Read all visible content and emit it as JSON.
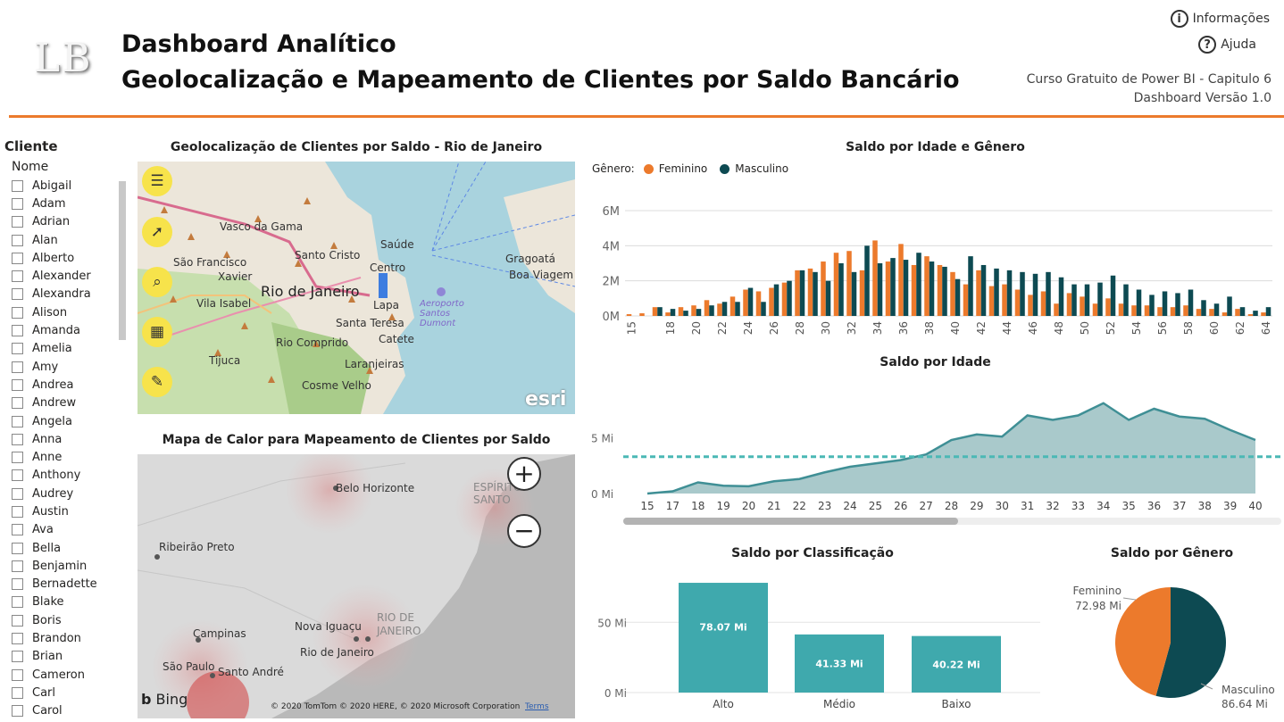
{
  "header": {
    "logo": "LB",
    "title_line1": "Dashboard Analítico",
    "title_line2": "Geolocalização e Mapeamento de Clientes por Saldo Bancário",
    "info_label": "Informações",
    "help_label": "Ajuda",
    "course_line1": "Curso Gratuito de Power BI - Capitulo 6",
    "course_line2": "Dashboard Versão 1.0",
    "accent_color": "#ec7a2c"
  },
  "slicer": {
    "title": "Cliente",
    "field": "Nome",
    "items": [
      "Abigail",
      "Adam",
      "Adrian",
      "Alan",
      "Alberto",
      "Alexander",
      "Alexandra",
      "Alison",
      "Amanda",
      "Amelia",
      "Amy",
      "Andrea",
      "Andrew",
      "Angela",
      "Anna",
      "Anne",
      "Anthony",
      "Audrey",
      "Austin",
      "Ava",
      "Bella",
      "Benjamin",
      "Bernadette",
      "Blake",
      "Boris",
      "Brandon",
      "Brian",
      "Cameron",
      "Carl",
      "Carol"
    ]
  },
  "map1": {
    "title": "Geolocalização de Clientes por Saldo - Rio de Janeiro",
    "tools": [
      "menu-icon",
      "cursor-icon",
      "search-icon",
      "qr-icon",
      "wrench-icon"
    ],
    "labels": [
      "Vasco da Gama",
      "Saúde",
      "Gragoatá",
      "Boa Viagem",
      "São Francisco",
      "Xavier",
      "Santo Cristo",
      "Centro",
      "Rio de Janeiro",
      "Vila Isabel",
      "Lapa",
      "Aeroporto Santos Dumont",
      "Santa Teresa",
      "Rio Comprido",
      "Catete",
      "Tijuca",
      "Laranjeiras",
      "Cosme Velho"
    ],
    "attribution": "esri"
  },
  "map2": {
    "title": "Mapa de Calor para Mapeamento de Clientes por Saldo",
    "labels": [
      "Belo Horizonte",
      "ESPÍRITO SANTO",
      "Ribeirão Preto",
      "RIO DE JANEIRO",
      "Campinas",
      "Nova Iguaçu",
      "Rio de Janeiro",
      "São Paulo",
      "Santo André"
    ],
    "bing": "Bing",
    "copyright": "© 2020 TomTom © 2020 HERE, © 2020 Microsoft Corporation",
    "terms": "Terms",
    "zoom_in": "+",
    "zoom_out": "−"
  },
  "legend": {
    "label": "Gênero:",
    "female": "Feminino",
    "male": "Masculino",
    "female_color": "#ec7a2c",
    "male_color": "#0d4a52"
  },
  "chart_data": [
    {
      "type": "bar",
      "title": "Saldo por Idade e Gênero",
      "x": [
        15,
        16,
        17,
        18,
        19,
        20,
        21,
        22,
        23,
        24,
        25,
        26,
        27,
        28,
        29,
        30,
        31,
        32,
        33,
        34,
        35,
        36,
        37,
        38,
        39,
        40,
        41,
        42,
        43,
        44,
        45,
        46,
        47,
        48,
        49,
        50,
        51,
        52,
        53,
        54,
        55,
        56,
        57,
        58,
        59,
        60,
        61,
        62,
        63,
        64
      ],
      "tick_labels": [
        "15",
        "18",
        "20",
        "22",
        "24",
        "26",
        "28",
        "30",
        "32",
        "34",
        "36",
        "38",
        "40",
        "42",
        "44",
        "46",
        "48",
        "50",
        "52",
        "54",
        "56",
        "58",
        "60",
        "62",
        "64"
      ],
      "ylim": [
        0,
        6000000
      ],
      "yticks": [
        "0M",
        "2M",
        "4M",
        "6M"
      ],
      "series": [
        {
          "name": "Feminino",
          "values": [
            0.1,
            0.15,
            0.5,
            0.2,
            0.5,
            0.6,
            0.9,
            0.7,
            1.1,
            1.5,
            1.4,
            1.6,
            1.9,
            2.6,
            2.7,
            3.1,
            3.6,
            3.7,
            2.6,
            4.3,
            3.1,
            4.1,
            2.9,
            3.4,
            2.9,
            2.5,
            1.8,
            2.6,
            1.7,
            1.8,
            1.5,
            1.2,
            1.4,
            0.7,
            1.3,
            1.1,
            0.7,
            1.0,
            0.7,
            0.6,
            0.6,
            0.5,
            0.5,
            0.6,
            0.4,
            0.4,
            0.2,
            0.4,
            0.1,
            0.2
          ]
        },
        {
          "name": "Masculino",
          "values": [
            0,
            0,
            0.5,
            0.4,
            0.3,
            0.4,
            0.6,
            0.8,
            0.8,
            1.6,
            0.8,
            1.8,
            2.0,
            2.6,
            2.5,
            2.0,
            3.0,
            2.5,
            4.0,
            3.0,
            3.3,
            3.2,
            3.6,
            3.1,
            2.8,
            2.1,
            3.4,
            2.9,
            2.7,
            2.6,
            2.5,
            2.4,
            2.5,
            2.2,
            1.8,
            1.8,
            1.9,
            2.3,
            1.8,
            1.5,
            1.2,
            1.4,
            1.3,
            1.5,
            0.9,
            0.7,
            1.1,
            0.5,
            0.3,
            0.5
          ]
        }
      ]
    },
    {
      "type": "area",
      "title": "Saldo por Idade",
      "x": [
        15,
        17,
        18,
        19,
        20,
        21,
        22,
        23,
        24,
        25,
        26,
        27,
        28,
        29,
        30,
        31,
        32,
        33,
        34,
        35,
        36,
        37,
        38,
        39,
        40
      ],
      "values": [
        0.0,
        0.2,
        1.0,
        0.7,
        0.65,
        1.1,
        1.3,
        1.9,
        2.4,
        2.7,
        3.0,
        3.5,
        4.8,
        5.3,
        5.1,
        7.0,
        6.6,
        7.0,
        8.1,
        6.6,
        7.6,
        6.9,
        6.7,
        5.7,
        4.8
      ],
      "ylim": [
        0,
        10
      ],
      "yticks": [
        "0 Mi",
        "5 Mi"
      ],
      "reference_line": 3.3,
      "color": "#3f8f95"
    },
    {
      "type": "bar",
      "title": "Saldo por Classificação",
      "categories": [
        "Alto",
        "Médio",
        "Baixo"
      ],
      "values": [
        78.07,
        41.33,
        40.22
      ],
      "data_labels": [
        "78.07 Mi",
        "41.33 Mi",
        "40.22 Mi"
      ],
      "yticks": [
        "0 Mi",
        "50 Mi"
      ],
      "ylim": [
        0,
        80
      ],
      "color": "#3fa9ad"
    },
    {
      "type": "pie",
      "title": "Saldo por Gênero",
      "categories": [
        "Feminino",
        "Masculino"
      ],
      "values": [
        72.98,
        86.64
      ],
      "data_labels": [
        "72.98 Mi",
        "86.64 Mi"
      ],
      "colors": [
        "#ec7a2c",
        "#0d4a52"
      ]
    }
  ]
}
